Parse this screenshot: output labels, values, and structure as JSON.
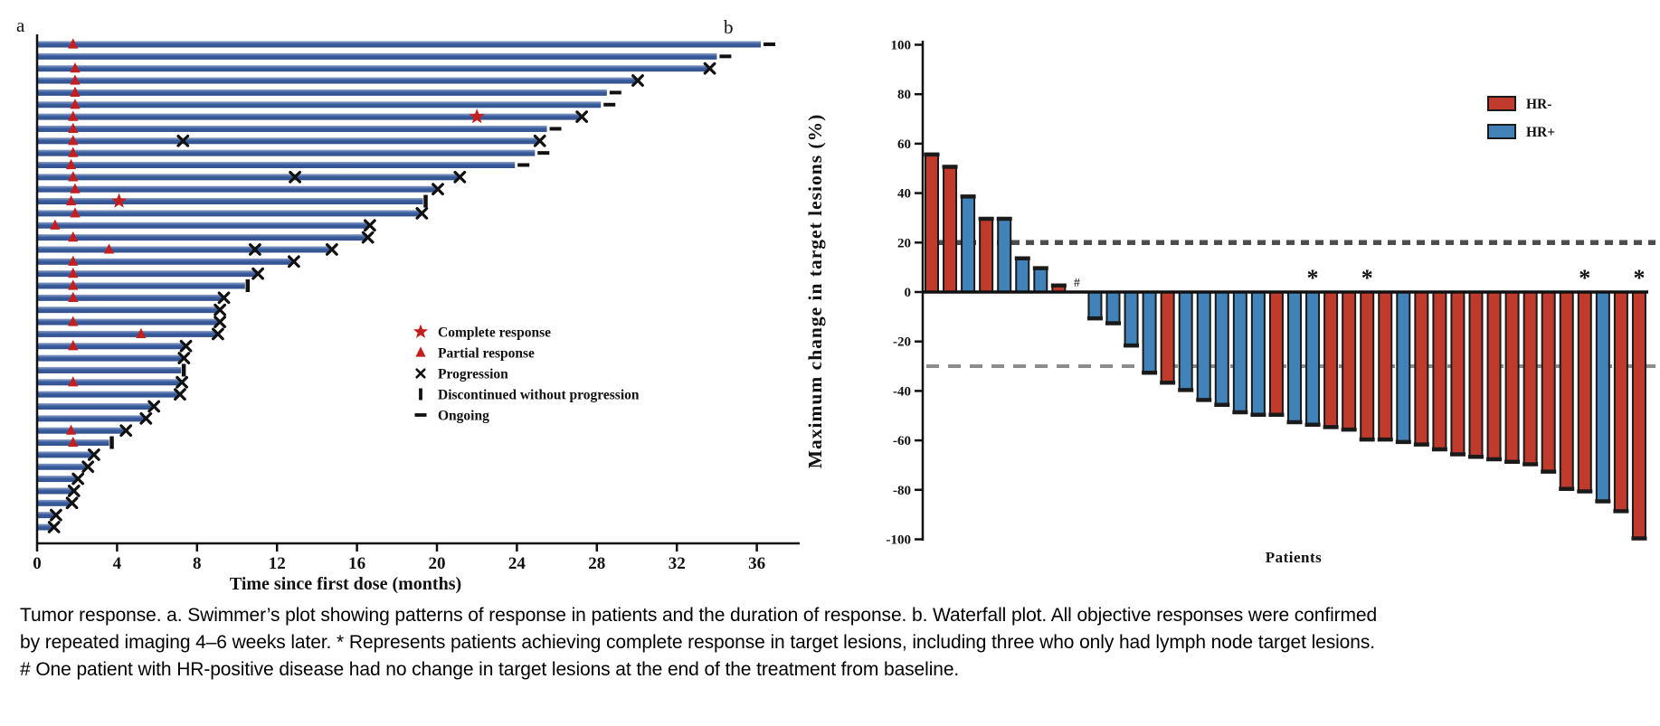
{
  "colors": {
    "swimmer_bar": "#3A5C9E",
    "swimmer_bar_light": "#8FA3C8",
    "response_red": "#C41F1F",
    "marker_black": "#111111",
    "hr_neg": "#C03B2C",
    "hr_pos": "#4183B8",
    "ref_line_upper": "#4D4D4D",
    "ref_line_lower": "#8C8C8C"
  },
  "panel_a": {
    "label": "a",
    "x_axis_title": "Time since first dose (months)",
    "x_ticks": [
      0,
      4,
      8,
      12,
      16,
      20,
      24,
      28,
      32,
      36
    ],
    "legend": [
      {
        "symbol": "star-icon",
        "label": "Complete response"
      },
      {
        "symbol": "triangle-icon",
        "label": "Partial response"
      },
      {
        "symbol": "x-icon",
        "label": "Progression"
      },
      {
        "symbol": "vbar-icon",
        "label": "Discontinued without progression"
      },
      {
        "symbol": "dash-icon",
        "label": "Ongoing"
      }
    ]
  },
  "panel_b": {
    "label": "b",
    "y_axis_title": "Maximum change in target lesions (%)",
    "x_axis_title": "Patients",
    "y_ticks": [
      100,
      80,
      60,
      40,
      20,
      0,
      -20,
      -40,
      -60,
      -80,
      -100
    ],
    "legend": [
      {
        "label": "HR-",
        "color_key": "hr_neg"
      },
      {
        "label": "HR+",
        "color_key": "hr_pos"
      }
    ]
  },
  "caption": "Tumor response. a. Swimmer’s plot showing patterns of response in patients and the duration of response. b. Waterfall plot. All objective responses were confirmed by repeated imaging 4–6 weeks later. * Represents patients achieving complete response in target lesions, including three who only had lymph node target lesions. # One patient with HR-positive disease had no change in target lesions at the end of the treatment from baseline.",
  "chart_data": [
    {
      "type": "swimmer",
      "xlabel": "Time since first dose (months)",
      "x_unit": "months",
      "xlim": [
        0,
        38
      ],
      "legend_entries": [
        "Complete response",
        "Partial response",
        "Progression",
        "Discontinued without progression",
        "Ongoing"
      ],
      "patients": [
        {
          "duration": 36.2,
          "end": "ongoing",
          "partial_response": 1.8
        },
        {
          "duration": 34.0,
          "end": "ongoing"
        },
        {
          "duration": 33.6,
          "end": "progression",
          "partial_response": 1.9
        },
        {
          "duration": 30.0,
          "end": "progression",
          "partial_response": 1.9
        },
        {
          "duration": 28.5,
          "end": "ongoing",
          "partial_response": 1.9
        },
        {
          "duration": 28.2,
          "end": "ongoing",
          "partial_response": 1.9
        },
        {
          "duration": 27.2,
          "end": "progression",
          "partial_response": 1.8,
          "complete_response": 22.0
        },
        {
          "duration": 25.5,
          "end": "ongoing",
          "partial_response": 1.8
        },
        {
          "duration": 25.1,
          "end": "progression",
          "partial_response": 1.8,
          "mid_progression": 7.3
        },
        {
          "duration": 24.9,
          "end": "ongoing",
          "partial_response": 1.8
        },
        {
          "duration": 23.9,
          "end": "ongoing",
          "partial_response": 1.7
        },
        {
          "duration": 21.1,
          "end": "progression",
          "partial_response": 1.8,
          "mid_progression": 12.9
        },
        {
          "duration": 20.0,
          "end": "progression",
          "partial_response": 1.9
        },
        {
          "duration": 19.3,
          "end": "discontinued",
          "partial_response": 1.7,
          "complete_response": 4.1
        },
        {
          "duration": 19.2,
          "end": "progression",
          "partial_response": 1.9
        },
        {
          "duration": 16.6,
          "end": "progression",
          "partial_response": 0.9
        },
        {
          "duration": 16.5,
          "end": "progression",
          "partial_response": 1.8
        },
        {
          "duration": 14.7,
          "end": "progression",
          "partial_response": 3.6,
          "mid_progression": 10.9
        },
        {
          "duration": 12.8,
          "end": "progression",
          "partial_response": 1.8
        },
        {
          "duration": 11.0,
          "end": "progression",
          "partial_response": 1.8
        },
        {
          "duration": 10.4,
          "end": "discontinued",
          "partial_response": 1.8
        },
        {
          "duration": 9.3,
          "end": "progression",
          "partial_response": 1.8
        },
        {
          "duration": 9.1,
          "end": "progression"
        },
        {
          "duration": 9.1,
          "end": "progression",
          "partial_response": 1.8
        },
        {
          "duration": 9.0,
          "end": "progression",
          "partial_response": 5.2
        },
        {
          "duration": 7.4,
          "end": "progression",
          "partial_response": 1.8
        },
        {
          "duration": 7.3,
          "end": "progression"
        },
        {
          "duration": 7.2,
          "end": "discontinued"
        },
        {
          "duration": 7.2,
          "end": "progression",
          "partial_response": 1.8
        },
        {
          "duration": 7.1,
          "end": "progression"
        },
        {
          "duration": 5.8,
          "end": "progression"
        },
        {
          "duration": 5.4,
          "end": "progression"
        },
        {
          "duration": 4.4,
          "end": "progression",
          "partial_response": 1.7
        },
        {
          "duration": 3.6,
          "end": "discontinued",
          "partial_response": 1.8
        },
        {
          "duration": 2.8,
          "end": "progression"
        },
        {
          "duration": 2.5,
          "end": "progression"
        },
        {
          "duration": 2.0,
          "end": "progression"
        },
        {
          "duration": 1.8,
          "end": "progression"
        },
        {
          "duration": 1.7,
          "end": "progression"
        },
        {
          "duration": 0.9,
          "end": "progression"
        },
        {
          "duration": 0.8,
          "end": "progression"
        }
      ]
    },
    {
      "type": "waterfall-bar",
      "ylabel": "Maximum change in target lesions (%)",
      "xlabel": "Patients",
      "ylim": [
        -100,
        100
      ],
      "reference_lines": [
        20,
        -30
      ],
      "legend": [
        "HR-",
        "HR+"
      ],
      "patients": [
        {
          "value": 56,
          "group": "HR-"
        },
        {
          "value": 51,
          "group": "HR-"
        },
        {
          "value": 39,
          "group": "HR+"
        },
        {
          "value": 30,
          "group": "HR-"
        },
        {
          "value": 30,
          "group": "HR+"
        },
        {
          "value": 14,
          "group": "HR+"
        },
        {
          "value": 10,
          "group": "HR+"
        },
        {
          "value": 3,
          "group": "HR-"
        },
        {
          "value": 0,
          "group": "HR+",
          "note": "#"
        },
        {
          "value": -11,
          "group": "HR+"
        },
        {
          "value": -13,
          "group": "HR+"
        },
        {
          "value": -22,
          "group": "HR+"
        },
        {
          "value": -33,
          "group": "HR+"
        },
        {
          "value": -37,
          "group": "HR-"
        },
        {
          "value": -40,
          "group": "HR+"
        },
        {
          "value": -44,
          "group": "HR+"
        },
        {
          "value": -46,
          "group": "HR+"
        },
        {
          "value": -49,
          "group": "HR+"
        },
        {
          "value": -50,
          "group": "HR+"
        },
        {
          "value": -50,
          "group": "HR-"
        },
        {
          "value": -53,
          "group": "HR+"
        },
        {
          "value": -54,
          "group": "HR+",
          "note": "*"
        },
        {
          "value": -55,
          "group": "HR-"
        },
        {
          "value": -56,
          "group": "HR-"
        },
        {
          "value": -60,
          "group": "HR-",
          "note": "*"
        },
        {
          "value": -60,
          "group": "HR-"
        },
        {
          "value": -61,
          "group": "HR+"
        },
        {
          "value": -62,
          "group": "HR-"
        },
        {
          "value": -64,
          "group": "HR-"
        },
        {
          "value": -66,
          "group": "HR-"
        },
        {
          "value": -67,
          "group": "HR-"
        },
        {
          "value": -68,
          "group": "HR-"
        },
        {
          "value": -69,
          "group": "HR-"
        },
        {
          "value": -70,
          "group": "HR-"
        },
        {
          "value": -73,
          "group": "HR-"
        },
        {
          "value": -80,
          "group": "HR-"
        },
        {
          "value": -81,
          "group": "HR-",
          "note": "*"
        },
        {
          "value": -85,
          "group": "HR+"
        },
        {
          "value": -89,
          "group": "HR-"
        },
        {
          "value": -100,
          "group": "HR-",
          "note": "*"
        }
      ]
    }
  ]
}
